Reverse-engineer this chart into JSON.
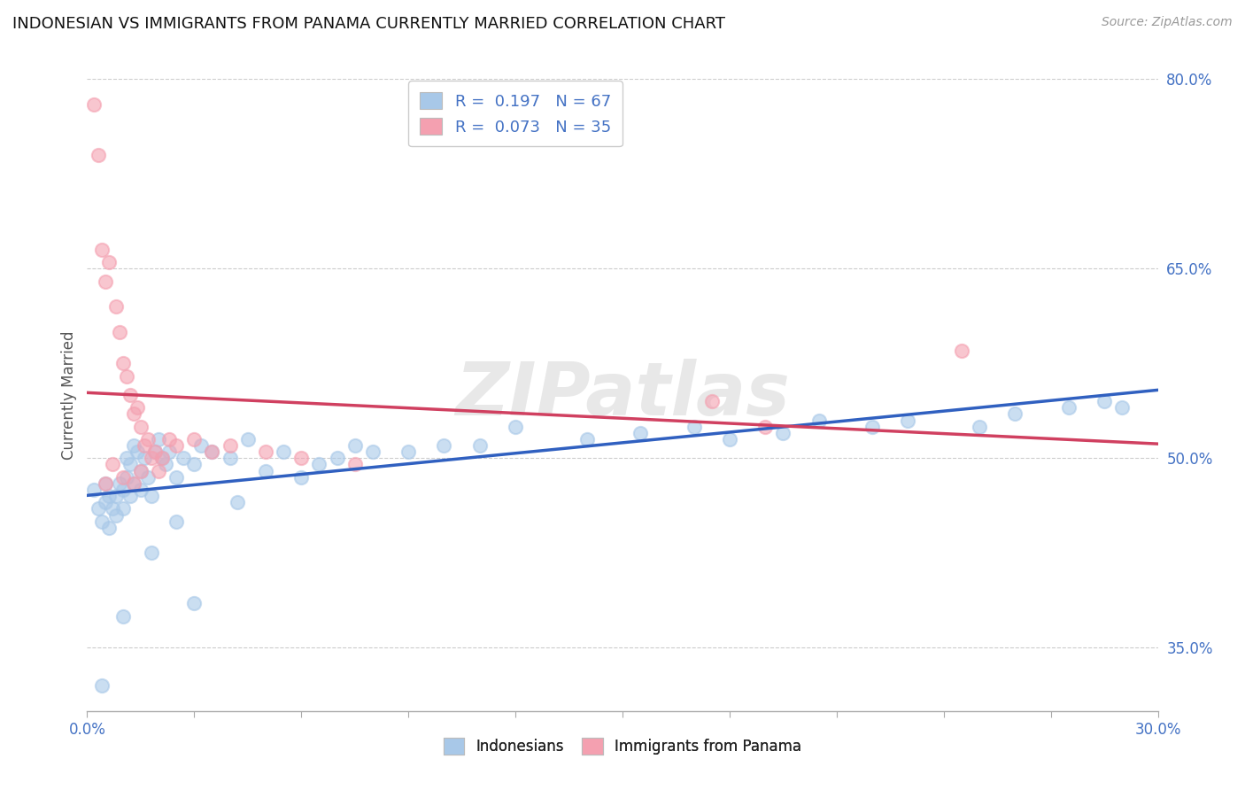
{
  "title": "INDONESIAN VS IMMIGRANTS FROM PANAMA CURRENTLY MARRIED CORRELATION CHART",
  "source": "Source: ZipAtlas.com",
  "ylabel_label": "Currently Married",
  "xmin": 0.0,
  "xmax": 30.0,
  "ymin": 30.0,
  "ymax": 80.0,
  "watermark": "ZIPatlas",
  "color_blue": "#A8C8E8",
  "color_pink": "#F4A0B0",
  "color_blue_line": "#3060C0",
  "color_pink_line": "#D04060",
  "color_text_blue": "#4472C4",
  "yticks": [
    35.0,
    50.0,
    65.0,
    80.0
  ],
  "indonesians_x": [
    0.2,
    0.3,
    0.4,
    0.5,
    0.5,
    0.6,
    0.6,
    0.7,
    0.8,
    0.8,
    0.9,
    1.0,
    1.0,
    1.1,
    1.1,
    1.2,
    1.2,
    1.3,
    1.3,
    1.4,
    1.5,
    1.5,
    1.6,
    1.7,
    1.8,
    1.9,
    2.0,
    2.1,
    2.2,
    2.3,
    2.5,
    2.7,
    3.0,
    3.2,
    3.5,
    4.0,
    4.5,
    5.0,
    5.5,
    6.0,
    6.5,
    7.0,
    7.5,
    8.0,
    9.0,
    10.0,
    11.0,
    12.0,
    14.0,
    15.5,
    17.0,
    18.0,
    19.5,
    20.5,
    22.0,
    23.0,
    25.0,
    26.0,
    27.5,
    28.5,
    29.0,
    2.5,
    4.2,
    1.8,
    0.4,
    1.0,
    3.0
  ],
  "indonesians_y": [
    47.5,
    46.0,
    45.0,
    48.0,
    46.5,
    47.0,
    44.5,
    46.0,
    45.5,
    47.0,
    48.0,
    47.5,
    46.0,
    50.0,
    48.5,
    49.5,
    47.0,
    51.0,
    48.0,
    50.5,
    49.0,
    47.5,
    50.0,
    48.5,
    47.0,
    50.5,
    51.5,
    50.0,
    49.5,
    50.5,
    48.5,
    50.0,
    49.5,
    51.0,
    50.5,
    50.0,
    51.5,
    49.0,
    50.5,
    48.5,
    49.5,
    50.0,
    51.0,
    50.5,
    50.5,
    51.0,
    51.0,
    52.5,
    51.5,
    52.0,
    52.5,
    51.5,
    52.0,
    53.0,
    52.5,
    53.0,
    52.5,
    53.5,
    54.0,
    54.5,
    54.0,
    45.0,
    46.5,
    42.5,
    32.0,
    37.5,
    38.5
  ],
  "panama_x": [
    0.2,
    0.3,
    0.4,
    0.5,
    0.6,
    0.8,
    0.9,
    1.0,
    1.1,
    1.2,
    1.3,
    1.4,
    1.5,
    1.6,
    1.7,
    1.8,
    1.9,
    2.0,
    2.1,
    2.3,
    2.5,
    3.0,
    3.5,
    4.0,
    5.0,
    6.0,
    7.5,
    17.5,
    19.0,
    24.5,
    0.5,
    0.7,
    1.0,
    1.3,
    1.5
  ],
  "panama_y": [
    78.0,
    74.0,
    66.5,
    64.0,
    65.5,
    62.0,
    60.0,
    57.5,
    56.5,
    55.0,
    53.5,
    54.0,
    52.5,
    51.0,
    51.5,
    50.0,
    50.5,
    49.0,
    50.0,
    51.5,
    51.0,
    51.5,
    50.5,
    51.0,
    50.5,
    50.0,
    49.5,
    54.5,
    52.5,
    58.5,
    48.0,
    49.5,
    48.5,
    48.0,
    49.0
  ]
}
